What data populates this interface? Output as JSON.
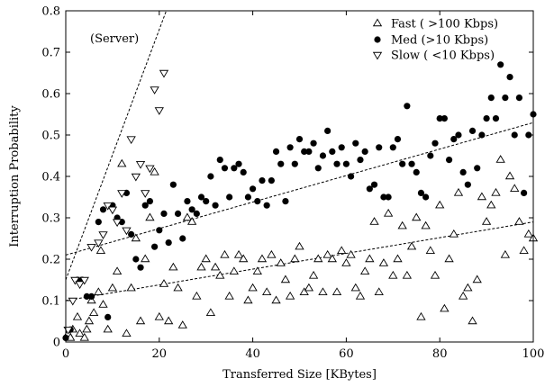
{
  "chart_data": {
    "type": "scatter",
    "xlabel": "Transferred Size [KBytes]",
    "ylabel": "Interruption Probability",
    "xlim": [
      0,
      100
    ],
    "ylim": [
      0,
      0.8
    ],
    "xticks": [
      0,
      20,
      40,
      60,
      80,
      100
    ],
    "yticks": [
      0,
      0.1,
      0.2,
      0.3,
      0.4,
      0.5,
      0.6,
      0.7,
      0.8
    ],
    "xtick_labels": [
      "0",
      "20",
      "40",
      "60",
      "80",
      "100"
    ],
    "ytick_labels": [
      "0",
      "0.1",
      "0.2",
      "0.3",
      "0.4",
      "0.5",
      "0.6",
      "0.7",
      "0.8"
    ],
    "grid": false,
    "legend_position": "top-right",
    "annotation": "(Server)",
    "series": [
      {
        "name": "Fast ( >100 Kbps)",
        "marker": "triangle-up-open",
        "color": "#000000",
        "points": [
          [
            0.5,
            0.02
          ],
          [
            1,
            0.01
          ],
          [
            1.5,
            0.03
          ],
          [
            2.5,
            0.06
          ],
          [
            3,
            0.02
          ],
          [
            4,
            0.01
          ],
          [
            4.5,
            0.03
          ],
          [
            5,
            0.05
          ],
          [
            5.5,
            0.1
          ],
          [
            6,
            0.07
          ],
          [
            7,
            0.12
          ],
          [
            7.5,
            0.22
          ],
          [
            8,
            0.09
          ],
          [
            9,
            0.03
          ],
          [
            10,
            0.13
          ],
          [
            11,
            0.17
          ],
          [
            12,
            0.43
          ],
          [
            13,
            0.02
          ],
          [
            14,
            0.13
          ],
          [
            15,
            0.25
          ],
          [
            16,
            0.05
          ],
          [
            17,
            0.2
          ],
          [
            18,
            0.3
          ],
          [
            19,
            0.41
          ],
          [
            20,
            0.06
          ],
          [
            21,
            0.14
          ],
          [
            22,
            0.05
          ],
          [
            23,
            0.18
          ],
          [
            24,
            0.13
          ],
          [
            25,
            0.04
          ],
          [
            26,
            0.3
          ],
          [
            27,
            0.29
          ],
          [
            28,
            0.11
          ],
          [
            29,
            0.18
          ],
          [
            30,
            0.2
          ],
          [
            31,
            0.07
          ],
          [
            32,
            0.18
          ],
          [
            33,
            0.16
          ],
          [
            34,
            0.21
          ],
          [
            35,
            0.11
          ],
          [
            36,
            0.17
          ],
          [
            37,
            0.21
          ],
          [
            38,
            0.2
          ],
          [
            39,
            0.1
          ],
          [
            40,
            0.13
          ],
          [
            41,
            0.17
          ],
          [
            42,
            0.2
          ],
          [
            43,
            0.12
          ],
          [
            44,
            0.21
          ],
          [
            45,
            0.1
          ],
          [
            46,
            0.19
          ],
          [
            47,
            0.15
          ],
          [
            48,
            0.11
          ],
          [
            49,
            0.2
          ],
          [
            50,
            0.23
          ],
          [
            51,
            0.12
          ],
          [
            52,
            0.13
          ],
          [
            53,
            0.16
          ],
          [
            54,
            0.2
          ],
          [
            55,
            0.12
          ],
          [
            56,
            0.21
          ],
          [
            57,
            0.2
          ],
          [
            58,
            0.12
          ],
          [
            59,
            0.22
          ],
          [
            60,
            0.19
          ],
          [
            61,
            0.21
          ],
          [
            62,
            0.13
          ],
          [
            63,
            0.11
          ],
          [
            64,
            0.17
          ],
          [
            65,
            0.2
          ],
          [
            66,
            0.29
          ],
          [
            67,
            0.12
          ],
          [
            68,
            0.19
          ],
          [
            69,
            0.31
          ],
          [
            70,
            0.16
          ],
          [
            71,
            0.2
          ],
          [
            72,
            0.28
          ],
          [
            73,
            0.16
          ],
          [
            74,
            0.23
          ],
          [
            75,
            0.3
          ],
          [
            76,
            0.06
          ],
          [
            77,
            0.28
          ],
          [
            78,
            0.22
          ],
          [
            79,
            0.16
          ],
          [
            80,
            0.33
          ],
          [
            81,
            0.08
          ],
          [
            82,
            0.2
          ],
          [
            83,
            0.26
          ],
          [
            84,
            0.36
          ],
          [
            85,
            0.11
          ],
          [
            86,
            0.13
          ],
          [
            87,
            0.05
          ],
          [
            88,
            0.15
          ],
          [
            89,
            0.35
          ],
          [
            90,
            0.29
          ],
          [
            91,
            0.33
          ],
          [
            92,
            0.36
          ],
          [
            93,
            0.44
          ],
          [
            94,
            0.21
          ],
          [
            95,
            0.4
          ],
          [
            96,
            0.37
          ],
          [
            97,
            0.29
          ],
          [
            98,
            0.22
          ],
          [
            99,
            0.26
          ],
          [
            100,
            0.25
          ]
        ]
      },
      {
        "name": "Med  (>10 Kbps)",
        "marker": "circle-filled",
        "color": "#000000",
        "points": [
          [
            0,
            0.01
          ],
          [
            1,
            0.03
          ],
          [
            2.5,
            0.15
          ],
          [
            3.5,
            0.15
          ],
          [
            4.5,
            0.11
          ],
          [
            5.5,
            0.11
          ],
          [
            7,
            0.29
          ],
          [
            8,
            0.32
          ],
          [
            9,
            0.06
          ],
          [
            10,
            0.33
          ],
          [
            11,
            0.3
          ],
          [
            12,
            0.29
          ],
          [
            13,
            0.36
          ],
          [
            14,
            0.26
          ],
          [
            15,
            0.2
          ],
          [
            16,
            0.18
          ],
          [
            17,
            0.33
          ],
          [
            18,
            0.34
          ],
          [
            19,
            0.23
          ],
          [
            20,
            0.27
          ],
          [
            21,
            0.31
          ],
          [
            22,
            0.24
          ],
          [
            23,
            0.38
          ],
          [
            24,
            0.31
          ],
          [
            25,
            0.25
          ],
          [
            26,
            0.34
          ],
          [
            27,
            0.32
          ],
          [
            28,
            0.31
          ],
          [
            29,
            0.35
          ],
          [
            30,
            0.34
          ],
          [
            31,
            0.4
          ],
          [
            32,
            0.33
          ],
          [
            33,
            0.44
          ],
          [
            34,
            0.42
          ],
          [
            35,
            0.35
          ],
          [
            36,
            0.42
          ],
          [
            37,
            0.43
          ],
          [
            38,
            0.41
          ],
          [
            39,
            0.35
          ],
          [
            40,
            0.37
          ],
          [
            41,
            0.34
          ],
          [
            42,
            0.39
          ],
          [
            43,
            0.33
          ],
          [
            44,
            0.39
          ],
          [
            45,
            0.46
          ],
          [
            46,
            0.43
          ],
          [
            47,
            0.34
          ],
          [
            48,
            0.47
          ],
          [
            49,
            0.43
          ],
          [
            50,
            0.49
          ],
          [
            51,
            0.46
          ],
          [
            52,
            0.46
          ],
          [
            53,
            0.48
          ],
          [
            54,
            0.42
          ],
          [
            55,
            0.45
          ],
          [
            56,
            0.51
          ],
          [
            57,
            0.46
          ],
          [
            58,
            0.43
          ],
          [
            59,
            0.47
          ],
          [
            60,
            0.43
          ],
          [
            61,
            0.4
          ],
          [
            62,
            0.48
          ],
          [
            63,
            0.44
          ],
          [
            64,
            0.46
          ],
          [
            65,
            0.37
          ],
          [
            66,
            0.38
          ],
          [
            67,
            0.47
          ],
          [
            68,
            0.35
          ],
          [
            69,
            0.35
          ],
          [
            70,
            0.47
          ],
          [
            71,
            0.49
          ],
          [
            72,
            0.43
          ],
          [
            73,
            0.57
          ],
          [
            74,
            0.43
          ],
          [
            75,
            0.41
          ],
          [
            76,
            0.36
          ],
          [
            77,
            0.35
          ],
          [
            78,
            0.45
          ],
          [
            79,
            0.48
          ],
          [
            80,
            0.54
          ],
          [
            81,
            0.54
          ],
          [
            82,
            0.44
          ],
          [
            83,
            0.49
          ],
          [
            84,
            0.5
          ],
          [
            85,
            0.41
          ],
          [
            86,
            0.38
          ],
          [
            87,
            0.51
          ],
          [
            88,
            0.42
          ],
          [
            89,
            0.5
          ],
          [
            90,
            0.54
          ],
          [
            91,
            0.59
          ],
          [
            92,
            0.54
          ],
          [
            93,
            0.67
          ],
          [
            94,
            0.59
          ],
          [
            95,
            0.64
          ],
          [
            96,
            0.5
          ],
          [
            97,
            0.59
          ],
          [
            98,
            0.36
          ],
          [
            99,
            0.5
          ],
          [
            100,
            0.55
          ]
        ]
      },
      {
        "name": "Slow ( <10 Kbps)",
        "marker": "triangle-down-open",
        "color": "#000000",
        "points": [
          [
            0.5,
            0.03
          ],
          [
            1.5,
            0.1
          ],
          [
            2,
            0.15
          ],
          [
            3,
            0.14
          ],
          [
            4,
            0.15
          ],
          [
            5.5,
            0.23
          ],
          [
            7,
            0.24
          ],
          [
            8,
            0.26
          ],
          [
            9,
            0.33
          ],
          [
            10,
            0.32
          ],
          [
            11,
            0.29
          ],
          [
            12,
            0.36
          ],
          [
            13,
            0.27
          ],
          [
            14,
            0.49
          ],
          [
            15,
            0.4
          ],
          [
            16,
            0.43
          ],
          [
            17,
            0.36
          ],
          [
            18,
            0.42
          ],
          [
            19,
            0.61
          ],
          [
            20,
            0.56
          ],
          [
            21,
            0.65
          ]
        ]
      }
    ],
    "trend_lines": [
      {
        "points": [
          [
            0,
            0.15
          ],
          [
            21.5,
            0.8
          ]
        ]
      },
      {
        "points": [
          [
            0,
            0.21
          ],
          [
            100,
            0.53
          ]
        ]
      },
      {
        "points": [
          [
            0,
            0.1
          ],
          [
            100,
            0.29
          ]
        ]
      }
    ]
  }
}
